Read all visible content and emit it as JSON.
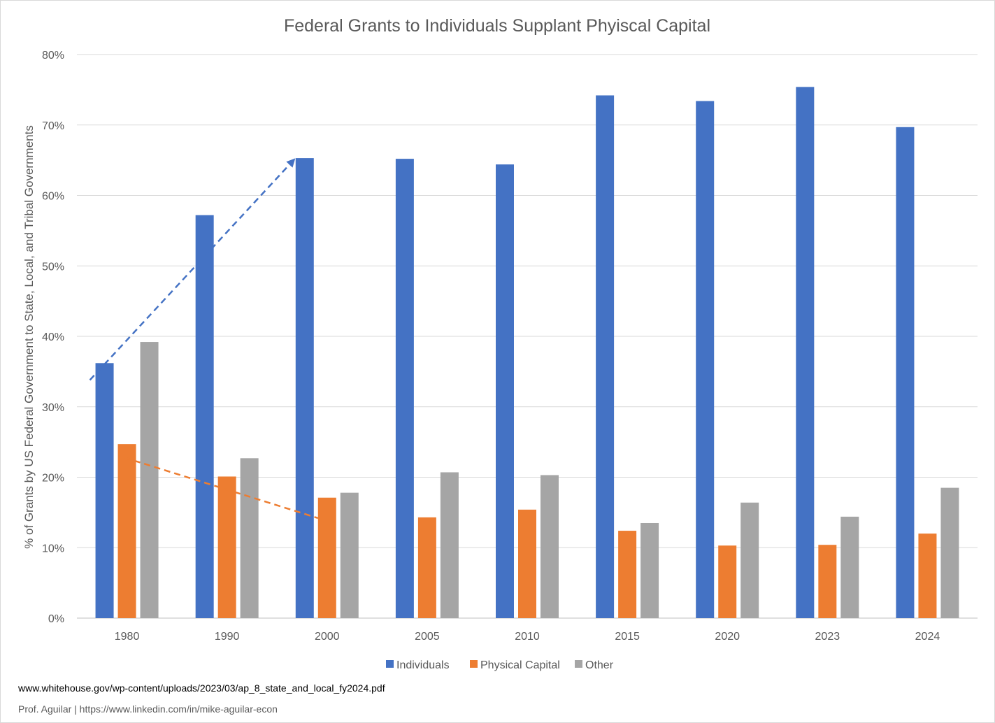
{
  "chart_data": {
    "type": "bar",
    "title": "Federal Grants to Individuals Supplant Phyiscal Capital",
    "xlabel": "",
    "ylabel": "% of Grants by US Federal Government to State, Local, and Tribal Governments",
    "ylim": [
      0,
      80
    ],
    "yticks": [
      "0%",
      "10%",
      "20%",
      "30%",
      "40%",
      "50%",
      "60%",
      "70%",
      "80%"
    ],
    "grid": true,
    "legend": "bottom",
    "categories": [
      "1980",
      "1990",
      "2000",
      "2005",
      "2010",
      "2015",
      "2020",
      "2023",
      "2024"
    ],
    "series": [
      {
        "name": "Individuals",
        "color": "#4472C4",
        "values": [
          36.2,
          57.2,
          65.3,
          65.2,
          64.4,
          74.2,
          73.4,
          75.4,
          69.7
        ]
      },
      {
        "name": "Physical Capital",
        "color": "#ED7D31",
        "values": [
          24.7,
          20.1,
          17.1,
          14.3,
          15.4,
          12.4,
          10.3,
          10.4,
          12.0
        ]
      },
      {
        "name": "Other",
        "color": "#A5A5A5",
        "values": [
          39.2,
          22.7,
          17.8,
          20.7,
          20.3,
          13.5,
          16.4,
          14.4,
          18.5
        ]
      }
    ],
    "annotations": [
      {
        "type": "dashed-arrow",
        "color": "#4472C4",
        "from": {
          "x": "1980",
          "y": 33.8
        },
        "to": {
          "x": "2000",
          "y": 65
        }
      },
      {
        "type": "dashed-line",
        "color": "#ED7D31",
        "from": {
          "x": "1980",
          "y": 22.8
        },
        "to": {
          "x": "2000",
          "y": 14.2
        }
      }
    ]
  },
  "footer": {
    "source": "www.whitehouse.gov/wp-content/uploads/2023/03/ap_8_state_and_local_fy2024.pdf",
    "credit": "Prof. Aguilar | https://www.linkedin.com/in/mike-aguilar-econ"
  }
}
